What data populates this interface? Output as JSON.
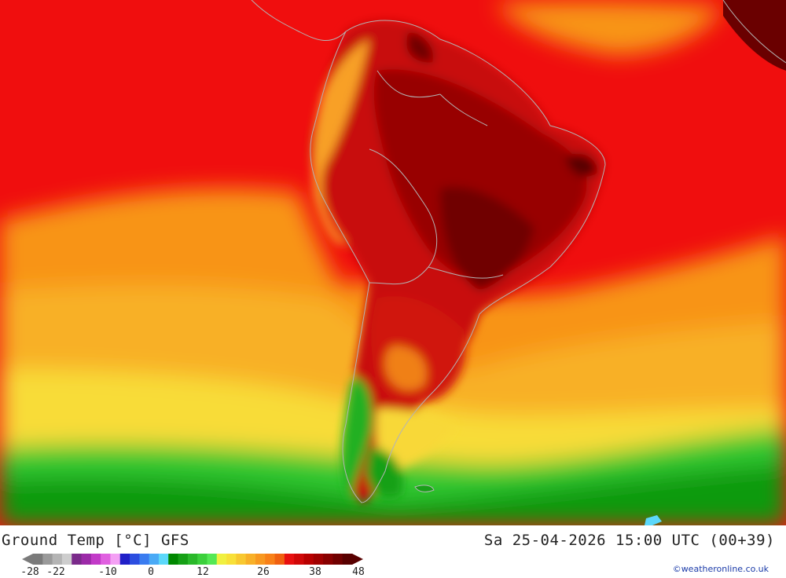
{
  "map": {
    "region": "South America",
    "land_color": "#c9c9c9",
    "border_color": "#b0b0b0"
  },
  "footer": {
    "title": "Ground Temp [°C] GFS",
    "datetime": "Sa 25-04-2026 15:00 UTC (00+39)",
    "credit": "©weatheronline.co.uk"
  },
  "legend": {
    "min_label": "-28",
    "max_label": "48",
    "ticks": [
      {
        "label": "-28",
        "value": -28
      },
      {
        "label": "-22",
        "value": -22
      },
      {
        "label": "-10",
        "value": -10
      },
      {
        "label": "0",
        "value": 0
      },
      {
        "label": "12",
        "value": 12
      },
      {
        "label": "26",
        "value": 26
      },
      {
        "label": "38",
        "value": 38
      },
      {
        "label": "48",
        "value": 48
      }
    ],
    "colors": [
      "#7a7a7a",
      "#9a9a9a",
      "#b4b4b4",
      "#cdcdcd",
      "#7a2a8a",
      "#9c2aa8",
      "#c23ac8",
      "#e060e0",
      "#f4a0f4",
      "#2020c8",
      "#2c4ee0",
      "#3a7cf0",
      "#4aaaf6",
      "#5cd8fa",
      "#008800",
      "#16a016",
      "#2ab82a",
      "#3cd03c",
      "#54e854",
      "#f0f040",
      "#f8e038",
      "#f8c830",
      "#f8b028",
      "#f89820",
      "#f88018",
      "#f06010",
      "#e81010",
      "#d00808",
      "#b80000",
      "#a00000",
      "#880000",
      "#700000",
      "#580000"
    ]
  }
}
